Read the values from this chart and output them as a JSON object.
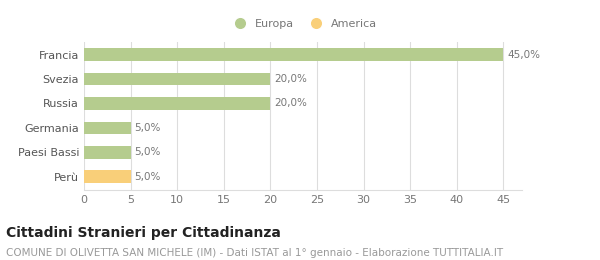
{
  "categories": [
    "Francia",
    "Svezia",
    "Russia",
    "Germania",
    "Paesi Bassi",
    "Perù"
  ],
  "values": [
    45.0,
    20.0,
    20.0,
    5.0,
    5.0,
    5.0
  ],
  "bar_colors": [
    "#b5cc8e",
    "#b5cc8e",
    "#b5cc8e",
    "#b5cc8e",
    "#b5cc8e",
    "#f9cf79"
  ],
  "bar_labels": [
    "45,0%",
    "20,0%",
    "20,0%",
    "5,0%",
    "5,0%",
    "5,0%"
  ],
  "xlim": [
    0,
    47
  ],
  "xticks": [
    0,
    5,
    10,
    15,
    20,
    25,
    30,
    35,
    40,
    45
  ],
  "legend_labels": [
    "Europa",
    "America"
  ],
  "legend_colors": [
    "#b5cc8e",
    "#f9cf79"
  ],
  "title": "Cittadini Stranieri per Cittadinanza",
  "subtitle": "COMUNE DI OLIVETTA SAN MICHELE (IM) - Dati ISTAT al 1° gennaio - Elaborazione TUTTITALIA.IT",
  "background_color": "#ffffff",
  "grid_color": "#dddddd",
  "title_fontsize": 10,
  "subtitle_fontsize": 7.5,
  "label_fontsize": 7.5,
  "tick_fontsize": 8,
  "legend_fontsize": 8
}
